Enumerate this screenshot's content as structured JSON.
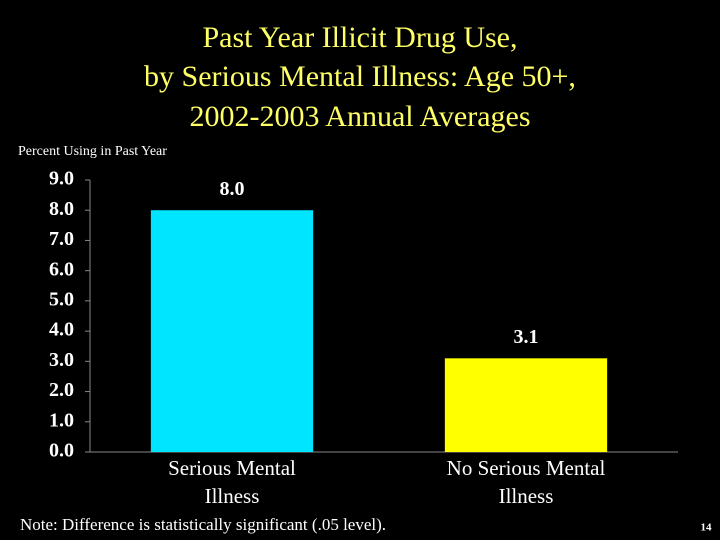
{
  "chart_data": {
    "type": "bar",
    "title": [
      "Past Year Illicit Drug Use,",
      "by Serious Mental Illness: Age 50+,",
      "2002-2003 Annual Averages"
    ],
    "y_label": "Percent Using in Past Year",
    "categories": [
      "Serious Mental Illness",
      "No Serious Mental Illness"
    ],
    "values": [
      8.0,
      3.1
    ],
    "value_labels": [
      "8.0",
      "3.1"
    ],
    "colors": [
      "#00e5ff",
      "#ffff00"
    ],
    "ylim": [
      0,
      9
    ],
    "yticks": [
      {
        "value": 0,
        "label": "0.0"
      },
      {
        "value": 1,
        "label": "1.0"
      },
      {
        "value": 2,
        "label": "2.0"
      },
      {
        "value": 3,
        "label": "3.0"
      },
      {
        "value": 4,
        "label": "4.0"
      },
      {
        "value": 5,
        "label": "5.0"
      },
      {
        "value": 6,
        "label": "6.0"
      },
      {
        "value": 7,
        "label": "7.0"
      },
      {
        "value": 8,
        "label": "8.0"
      },
      {
        "value": 9,
        "label": "9.0"
      }
    ],
    "grid": false,
    "note": "Note: Difference is statistically significant (.05 level).",
    "page_number": "14"
  }
}
